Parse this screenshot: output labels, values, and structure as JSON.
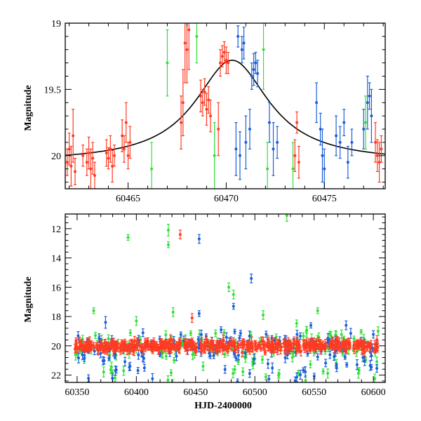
{
  "chart_data": [
    {
      "type": "scatter",
      "panel": "top",
      "xlabel": "",
      "ylabel": "Magnitude",
      "xlim": [
        60461.8,
        60478.1
      ],
      "ylim": [
        20.25,
        19.0
      ],
      "y_inverted": true,
      "x_ticks": [
        60465,
        60470,
        60475
      ],
      "x_tick_labels": [
        "60465",
        "60470",
        "60475"
      ],
      "y_ticks": [
        19,
        19.5,
        20
      ],
      "y_tick_labels": [
        "19",
        "19.5",
        "20"
      ],
      "grid": false,
      "colors": {
        "red": "#ff3b22",
        "blue": "#1b5fd8",
        "green": "#33e03a",
        "model": "#000000"
      },
      "model_curve": {
        "name": "",
        "baseline": 20.05,
        "peak_mag": 19.28,
        "peak_x": 60470.3,
        "width": 2.3
      },
      "series": [
        {
          "color": "red",
          "points": [
            [
              60461.9,
              20.05,
              0.1
            ],
            [
              60462.0,
              19.95,
              0.12
            ],
            [
              60462.1,
              20.08,
              0.15
            ],
            [
              60462.2,
              19.85,
              0.2
            ],
            [
              60462.3,
              20.12,
              0.1
            ],
            [
              60462.7,
              20.0,
              0.08
            ],
            [
              60462.9,
              20.05,
              0.1
            ],
            [
              60463.0,
              19.98,
              0.12
            ],
            [
              60463.1,
              20.1,
              0.15
            ],
            [
              60463.2,
              20.02,
              0.12
            ],
            [
              60463.3,
              20.15,
              0.1
            ],
            [
              60463.9,
              19.98,
              0.1
            ],
            [
              60464.0,
              20.02,
              0.08
            ],
            [
              60464.1,
              19.95,
              0.1
            ],
            [
              60464.2,
              20.08,
              0.12
            ],
            [
              60464.3,
              20.0,
              0.08
            ],
            [
              60464.7,
              19.85,
              0.12
            ],
            [
              60464.8,
              19.95,
              0.1
            ],
            [
              60464.9,
              19.75,
              0.15
            ],
            [
              60465.0,
              20.0,
              0.1
            ],
            [
              60465.1,
              19.9,
              0.12
            ],
            [
              60467.7,
              19.75,
              0.2
            ],
            [
              60467.8,
              19.6,
              0.25
            ],
            [
              60467.9,
              19.15,
              0.3
            ],
            [
              60468.0,
              19.2,
              0.25
            ],
            [
              60468.1,
              19.05,
              0.3
            ],
            [
              60468.7,
              19.55,
              0.12
            ],
            [
              60468.8,
              19.6,
              0.1
            ],
            [
              60468.9,
              19.52,
              0.1
            ],
            [
              60469.0,
              19.65,
              0.12
            ],
            [
              60469.1,
              19.58,
              0.1
            ],
            [
              60469.2,
              19.7,
              0.12
            ],
            [
              60469.6,
              19.8,
              0.2
            ],
            [
              60469.7,
              19.3,
              0.1
            ],
            [
              60469.8,
              19.25,
              0.08
            ],
            [
              60469.9,
              19.22,
              0.08
            ],
            [
              60470.0,
              19.28,
              0.1
            ],
            [
              60470.1,
              19.3,
              0.08
            ],
            [
              60473.5,
              20.0,
              0.12
            ],
            [
              60473.6,
              19.75,
              0.08
            ],
            [
              60473.7,
              20.05,
              0.12
            ],
            [
              60477.6,
              19.9,
              0.15
            ],
            [
              60477.7,
              20.0,
              0.12
            ],
            [
              60477.8,
              20.05,
              0.15
            ],
            [
              60477.9,
              19.95,
              0.1
            ]
          ]
        },
        {
          "color": "blue",
          "points": [
            [
              60470.6,
              19.1,
              0.08
            ],
            [
              60470.8,
              19.2,
              0.1
            ],
            [
              60470.9,
              19.15,
              0.12
            ],
            [
              60471.3,
              19.4,
              0.1
            ],
            [
              60471.4,
              19.35,
              0.12
            ],
            [
              60471.5,
              19.3,
              0.08
            ],
            [
              60471.6,
              19.38,
              0.1
            ],
            [
              60470.5,
              19.95,
              0.2
            ],
            [
              60470.7,
              20.0,
              0.18
            ],
            [
              60471.0,
              19.9,
              0.2
            ],
            [
              60471.2,
              19.8,
              0.15
            ],
            [
              60472.2,
              19.75,
              0.15
            ],
            [
              60472.4,
              19.95,
              0.2
            ],
            [
              60472.6,
              19.9,
              0.12
            ],
            [
              60474.6,
              19.6,
              0.15
            ],
            [
              60474.8,
              19.8,
              0.12
            ],
            [
              60474.9,
              20.0,
              0.2
            ],
            [
              60475.0,
              20.1,
              0.15
            ],
            [
              60475.6,
              19.85,
              0.15
            ],
            [
              60475.8,
              19.9,
              0.12
            ],
            [
              60476.0,
              19.75,
              0.1
            ],
            [
              60476.2,
              20.05,
              0.12
            ],
            [
              60476.4,
              19.9,
              0.1
            ],
            [
              60477.0,
              19.8,
              0.15
            ],
            [
              60477.2,
              19.6,
              0.2
            ],
            [
              60477.3,
              19.55,
              0.1
            ],
            [
              60477.4,
              19.7,
              0.2
            ]
          ]
        },
        {
          "color": "green",
          "points": [
            [
              60466.2,
              20.1,
              0.2
            ],
            [
              60467.0,
              19.3,
              0.25
            ],
            [
              60468.5,
              19.1,
              0.2
            ],
            [
              60469.4,
              20.0,
              0.25
            ],
            [
              60471.9,
              19.2,
              0.3
            ],
            [
              60472.1,
              20.1,
              0.2
            ],
            [
              60473.4,
              20.1,
              0.2
            ],
            [
              60477.1,
              19.75,
              0.2
            ]
          ]
        }
      ]
    },
    {
      "type": "scatter",
      "panel": "bottom",
      "xlabel": "HJD-2400000",
      "ylabel": "Magnitude",
      "xlim": [
        60340,
        60610
      ],
      "ylim": [
        22.5,
        11.0
      ],
      "y_inverted": true,
      "x_ticks": [
        60350,
        60400,
        60450,
        60500,
        60550,
        60600
      ],
      "x_tick_labels": [
        "60350",
        "60400",
        "60450",
        "60500",
        "60550",
        "60600"
      ],
      "y_ticks": [
        12,
        14,
        16,
        18,
        20,
        22
      ],
      "y_tick_labels": [
        "12",
        "14",
        "16",
        "18",
        "20",
        "22"
      ],
      "grid": false,
      "colors": {
        "red": "#ff3b22",
        "blue": "#1b5fd8",
        "green": "#33e03a"
      },
      "red_band": {
        "x_start": 60348,
        "x_end": 60604,
        "mean_mag": 20.0,
        "scatter": 0.45
      },
      "outliers": [
        {
          "color": "green",
          "x": 60393,
          "y": 12.6,
          "err": 0.2
        },
        {
          "color": "green",
          "x": 60427,
          "y": 12.1,
          "err": 0.4
        },
        {
          "color": "green",
          "x": 60427,
          "y": 13.1,
          "err": 0.2
        },
        {
          "color": "red",
          "x": 60437,
          "y": 12.4,
          "err": 0.3
        },
        {
          "color": "blue",
          "x": 60453,
          "y": 12.7,
          "err": 0.3
        },
        {
          "color": "green",
          "x": 60527,
          "y": 11.1,
          "err": 0.4
        },
        {
          "color": "blue",
          "x": 60497,
          "y": 15.4,
          "err": 0.3
        },
        {
          "color": "green",
          "x": 60478,
          "y": 16.0,
          "err": 0.3
        },
        {
          "color": "green",
          "x": 60482,
          "y": 16.5,
          "err": 0.3
        },
        {
          "color": "blue",
          "x": 60482,
          "y": 17.3,
          "err": 0.2
        },
        {
          "color": "green",
          "x": 60364,
          "y": 17.6,
          "err": 0.2
        },
        {
          "color": "blue",
          "x": 60374,
          "y": 18.4,
          "err": 0.4
        },
        {
          "color": "green",
          "x": 60400,
          "y": 18.3,
          "err": 0.3
        },
        {
          "color": "green",
          "x": 60431,
          "y": 17.7,
          "err": 0.3
        },
        {
          "color": "red",
          "x": 60447,
          "y": 18.1,
          "err": 0.3
        },
        {
          "color": "blue",
          "x": 60453,
          "y": 17.8,
          "err": 0.2
        },
        {
          "color": "green",
          "x": 60507,
          "y": 17.9,
          "err": 0.3
        },
        {
          "color": "green",
          "x": 60553,
          "y": 17.6,
          "err": 0.2
        },
        {
          "color": "blue",
          "x": 60577,
          "y": 18.6,
          "err": 0.3
        },
        {
          "color": "green",
          "x": 60604,
          "y": 19.0,
          "err": 0.3
        }
      ]
    }
  ]
}
